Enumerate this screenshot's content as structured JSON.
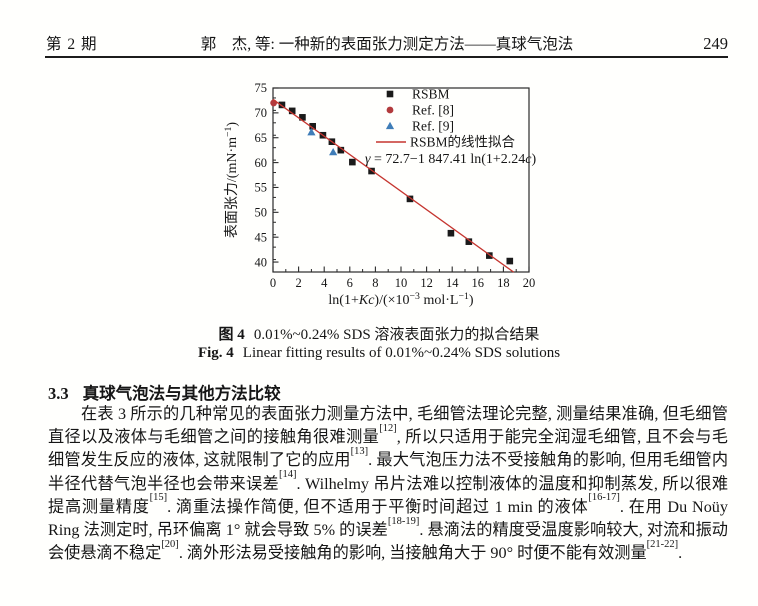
{
  "header": {
    "issue": "第 2 期",
    "title": "郭　杰, 等: 一种新的表面张力测定方法——真球气泡法",
    "page": "249"
  },
  "figure": {
    "caption_zh_label": "图 4",
    "caption_zh_text": "0.01%~0.24% SDS 溶液表面张力的拟合结果",
    "caption_en_label": "Fig. 4",
    "caption_en_text": "Linear fitting results of 0.01%~0.24% SDS solutions"
  },
  "chart_data": {
    "type": "scatter",
    "title": "",
    "xlabel": "ln(1+Kc)/(×10⁻³ mol·L⁻¹)",
    "ylabel": "表面张力/(mN·m⁻¹)",
    "xlabel_parts": [
      {
        "t": "ln(1+"
      },
      {
        "t": "K",
        "i": true
      },
      {
        "t": "c",
        "i": true
      },
      {
        "t": ")/(×10"
      },
      {
        "t": "−3",
        "sup": true
      },
      {
        "t": " mol·L"
      },
      {
        "t": "−1",
        "sup": true
      },
      {
        "t": ")"
      }
    ],
    "ylabel_parts": [
      {
        "t": "表面张力/(mN·m"
      },
      {
        "t": "−1",
        "sup": true
      },
      {
        "t": ")"
      }
    ],
    "xlim": [
      0,
      20
    ],
    "ylim": [
      38,
      75
    ],
    "x_major_ticks": [
      0,
      2,
      4,
      6,
      8,
      10,
      12,
      14,
      16,
      18,
      20
    ],
    "x_minor_step": 1,
    "y_major_ticks": [
      40,
      45,
      50,
      55,
      60,
      65,
      70,
      75
    ],
    "y_minor_step": 2.5,
    "grid": false,
    "legend_position": "top-right",
    "annotation": "γ = 72.7−1 847.41 ln(1+2.24c)",
    "annotation_parts": [
      {
        "t": "γ",
        "i": true
      },
      {
        "t": " = 72.7−1 847.41 ln(1+2.24"
      },
      {
        "t": "c",
        "i": true
      },
      {
        "t": ")"
      }
    ],
    "series": [
      {
        "name": "RSBM",
        "marker": "square",
        "color": "#1a1a1a",
        "points": [
          [
            0.7,
            71.6
          ],
          [
            1.5,
            70.4
          ],
          [
            2.3,
            69.1
          ],
          [
            3.1,
            67.3
          ],
          [
            3.9,
            65.5
          ],
          [
            4.6,
            64.2
          ],
          [
            5.3,
            62.5
          ],
          [
            6.2,
            60.1
          ],
          [
            7.7,
            58.3
          ],
          [
            10.7,
            52.7
          ],
          [
            13.9,
            45.8
          ],
          [
            15.3,
            44.1
          ],
          [
            16.9,
            41.3
          ],
          [
            18.5,
            40.2
          ]
        ]
      },
      {
        "name": "Ref. [8]",
        "marker": "circle",
        "color": "#b23a3d",
        "points": [
          [
            0.05,
            72.0
          ]
        ]
      },
      {
        "name": "Ref. [9]",
        "marker": "triangle",
        "color": "#3f7db8",
        "points": [
          [
            3.0,
            66.1
          ],
          [
            4.7,
            62.1
          ]
        ]
      },
      {
        "name": "RSBM的线性拟合",
        "marker": "line",
        "color": "#c5352f",
        "fit": {
          "intercept": 72.7,
          "slope": -1.84741,
          "x_range": [
            0,
            18.8
          ]
        }
      }
    ]
  },
  "section": {
    "number": "3.3",
    "title": "真球气泡法与其他方法比较",
    "paragraph": [
      {
        "t": "在表 3 所示的几种常见的表面张力测量方法中, 毛细管法理论完整, 测量结果准确, 但毛细管直径以及液体与毛细管之间的接触角很难测量"
      },
      {
        "t": "[12]",
        "sup": true
      },
      {
        "t": ", 所以只适用于能完全润湿毛细管, 且不会与毛细管发生反应的液体, 这就限制了它的应用"
      },
      {
        "t": "[13]",
        "sup": true
      },
      {
        "t": ". 最大气泡压力法不受接触角的影响, 但用毛细管内半径代替气泡半径也会带来误差"
      },
      {
        "t": "[14]",
        "sup": true
      },
      {
        "t": ". Wilhelmy 吊片法难以控制液体的温度和抑制蒸发, 所以很难提高测量精度"
      },
      {
        "t": "[15]",
        "sup": true
      },
      {
        "t": ". 滴重法操作简便, 但不适用于平衡时间超过 1 min 的液体"
      },
      {
        "t": "[16-17]",
        "sup": true
      },
      {
        "t": ". 在用 Du Noüy Ring 法测定时, 吊环偏离 1° 就会导致 5% 的误差"
      },
      {
        "t": "[18-19]",
        "sup": true
      },
      {
        "t": ". 悬滴法的精度受温度影响较大, 对流和振动会使悬滴不稳定"
      },
      {
        "t": "[20]",
        "sup": true
      },
      {
        "t": ". 滴外形法易受接触角的影响, 当接触角大于 90° 时便不能有效测量"
      },
      {
        "t": "[21-22]",
        "sup": true
      },
      {
        "t": "."
      }
    ]
  }
}
